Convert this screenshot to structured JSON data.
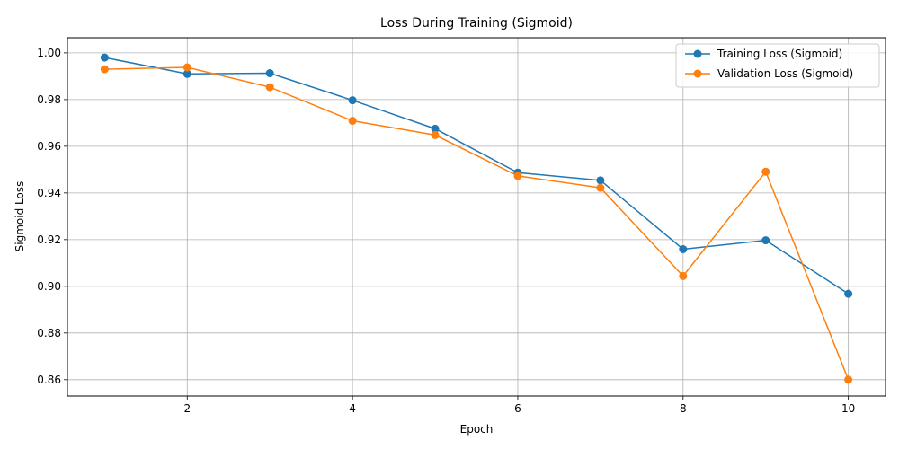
{
  "chart_data": {
    "type": "line",
    "title": "Loss During Training (Sigmoid)",
    "xlabel": "Epoch",
    "ylabel": "Sigmoid Loss",
    "x": [
      1,
      2,
      3,
      4,
      5,
      6,
      7,
      8,
      9,
      10
    ],
    "xlim": [
      0.55,
      10.45
    ],
    "ylim": [
      0.853,
      1.0065
    ],
    "x_ticks": [
      2,
      4,
      6,
      8,
      10
    ],
    "y_ticks": [
      0.86,
      0.88,
      0.9,
      0.92,
      0.94,
      0.96,
      0.98,
      1.0
    ],
    "y_tick_labels": [
      "0.86",
      "0.88",
      "0.90",
      "0.92",
      "0.94",
      "0.96",
      "0.98",
      "1.00"
    ],
    "grid": true,
    "legend_position": "top-right",
    "series": [
      {
        "name": "Training Loss (Sigmoid)",
        "color": "#1f77b4",
        "values": [
          0.998,
          0.991,
          0.9913,
          0.9797,
          0.9675,
          0.9487,
          0.9454,
          0.9159,
          0.9197,
          0.8968
        ]
      },
      {
        "name": "Validation Loss (Sigmoid)",
        "color": "#ff7f0e",
        "values": [
          0.993,
          0.9938,
          0.9853,
          0.9709,
          0.9648,
          0.9473,
          0.9422,
          0.9044,
          0.9491,
          0.86
        ]
      }
    ]
  }
}
